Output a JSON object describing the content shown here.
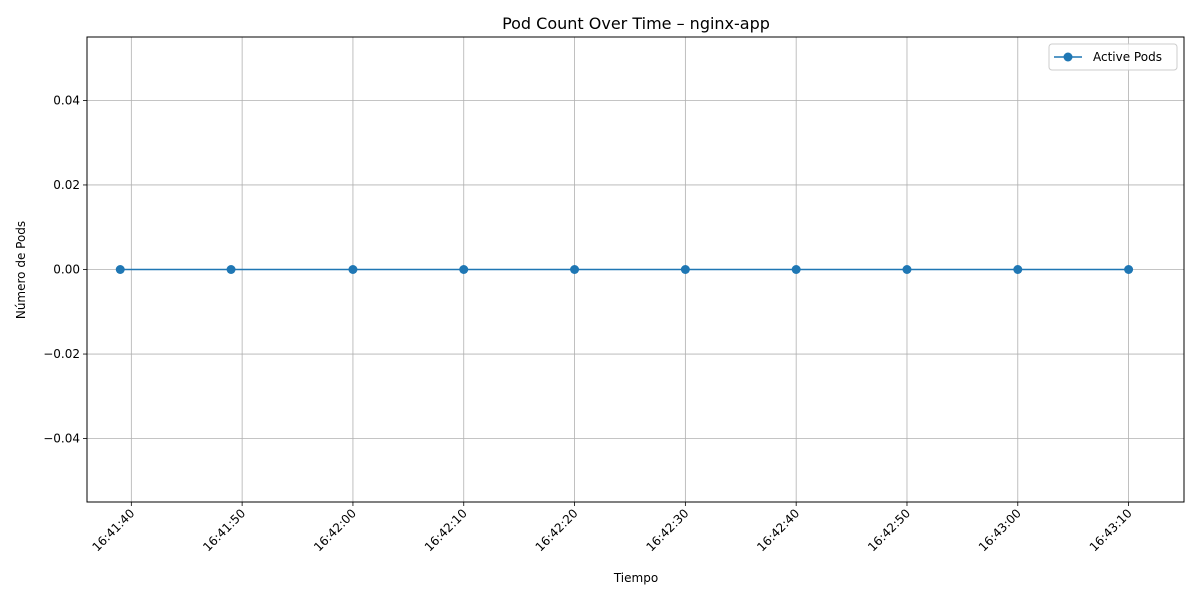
{
  "chart_data": {
    "type": "line",
    "title": "Pod Count Over Time – nginx-app",
    "xlabel": "Tiempo",
    "ylabel": "Número de Pods",
    "x_tick_labels": [
      "16:41:40",
      "16:41:50",
      "16:42:00",
      "16:42:10",
      "16:42:20",
      "16:42:30",
      "16:42:40",
      "16:42:50",
      "16:43:00",
      "16:43:10"
    ],
    "y_tick_labels": [
      "0.04",
      "0.02",
      "0.00",
      "−0.02",
      "−0.04"
    ],
    "y_ticks": [
      0.04,
      0.02,
      0.0,
      -0.02,
      -0.04
    ],
    "ylim": [
      -0.055,
      0.055
    ],
    "xlim": [
      "16:41:36",
      "16:43:15"
    ],
    "series": [
      {
        "name": "Active Pods",
        "color": "#1f77b4",
        "marker": "circle",
        "x": [
          "16:41:39",
          "16:41:49",
          "16:42:00",
          "16:42:10",
          "16:42:20",
          "16:42:30",
          "16:42:40",
          "16:42:50",
          "16:43:00",
          "16:43:10"
        ],
        "values": [
          0,
          0,
          0,
          0,
          0,
          0,
          0,
          0,
          0,
          0
        ]
      }
    ],
    "grid": true,
    "legend_position": "upper right",
    "x_tick_rotation": 45
  }
}
